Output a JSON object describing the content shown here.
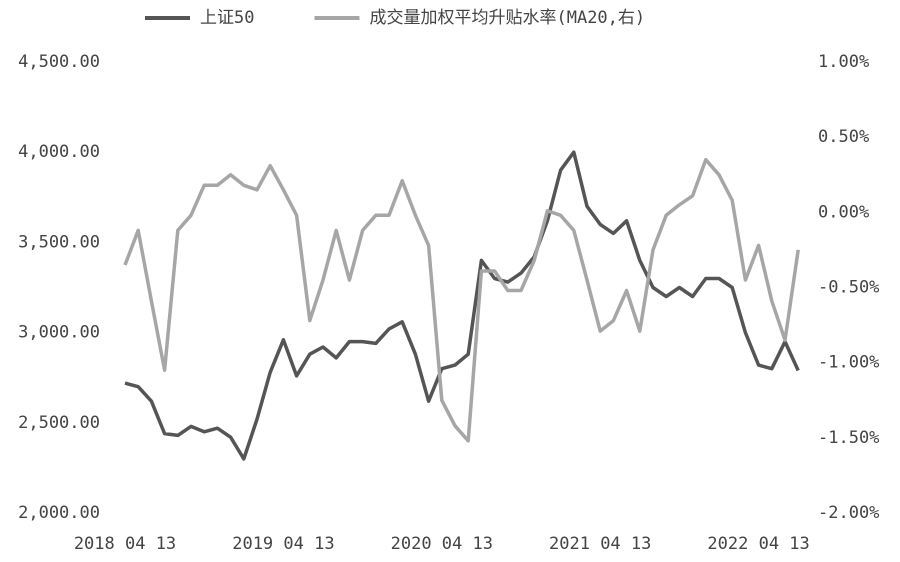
{
  "chart_data": {
    "type": "line",
    "categories": [
      "2018 04 13",
      null,
      null,
      null,
      null,
      null,
      null,
      null,
      null,
      null,
      null,
      null,
      "2019 04 13",
      null,
      null,
      null,
      null,
      null,
      null,
      null,
      null,
      null,
      null,
      null,
      "2020 04 13",
      null,
      null,
      null,
      null,
      null,
      null,
      null,
      null,
      null,
      null,
      null,
      "2021 04 13",
      null,
      null,
      null,
      null,
      null,
      null,
      null,
      null,
      null,
      null,
      null,
      "2022 04 13",
      null,
      null,
      null
    ],
    "series": [
      {
        "name": "上证50",
        "color": "#555555",
        "axis": "y",
        "values": [
          2720,
          2700,
          2620,
          2440,
          2430,
          2480,
          2450,
          2470,
          2420,
          2300,
          2520,
          2780,
          2960,
          2760,
          2880,
          2920,
          2860,
          2950,
          2950,
          2940,
          3020,
          3060,
          2880,
          2620,
          2800,
          2820,
          2880,
          3400,
          3300,
          3280,
          3330,
          3420,
          3620,
          3900,
          4000,
          3700,
          3600,
          3550,
          3620,
          3400,
          3250,
          3200,
          3250,
          3200,
          3300,
          3300,
          3250,
          3000,
          2820,
          2800,
          2950,
          2790
        ]
      },
      {
        "name": "成交量加权平均升贴水率(MA20,右)",
        "color": "#a6a6a6",
        "axis": "y2",
        "values": [
          -0.35,
          -0.12,
          -0.59,
          -1.05,
          -0.12,
          -0.02,
          0.18,
          0.18,
          0.25,
          0.18,
          0.15,
          0.31,
          0.15,
          -0.02,
          -0.72,
          -0.45,
          -0.12,
          -0.45,
          -0.12,
          -0.02,
          -0.02,
          0.21,
          -0.02,
          -0.22,
          -1.25,
          -1.42,
          -1.52,
          -0.39,
          -0.39,
          -0.52,
          -0.52,
          -0.32,
          0.01,
          -0.02,
          -0.12,
          -0.45,
          -0.79,
          -0.72,
          -0.52,
          -0.79,
          -0.25,
          -0.02,
          0.05,
          0.11,
          0.35,
          0.25,
          0.08,
          -0.45,
          -0.22,
          -0.59,
          -0.85,
          -0.25
        ]
      }
    ],
    "ylim": [
      2000,
      4500
    ],
    "yticks": [
      {
        "value": 2000,
        "label": "2,000.00"
      },
      {
        "value": 2500,
        "label": "2,500.00"
      },
      {
        "value": 3000,
        "label": "3,000.00"
      },
      {
        "value": 3500,
        "label": "3,500.00"
      },
      {
        "value": 4000,
        "label": "4,000.00"
      },
      {
        "value": 4500,
        "label": "4,500.00"
      }
    ],
    "y2lim": [
      -2,
      1
    ],
    "y2ticks": [
      {
        "value": -2,
        "label": "-2.00%"
      },
      {
        "value": -1.5,
        "label": "-1.50%"
      },
      {
        "value": -1,
        "label": "-1.00%"
      },
      {
        "value": -0.5,
        "label": "-0.50%"
      },
      {
        "value": 0,
        "label": "0.00%"
      },
      {
        "value": 0.5,
        "label": "0.50%"
      },
      {
        "value": 1,
        "label": "1.00%"
      }
    ],
    "legend": "top"
  }
}
